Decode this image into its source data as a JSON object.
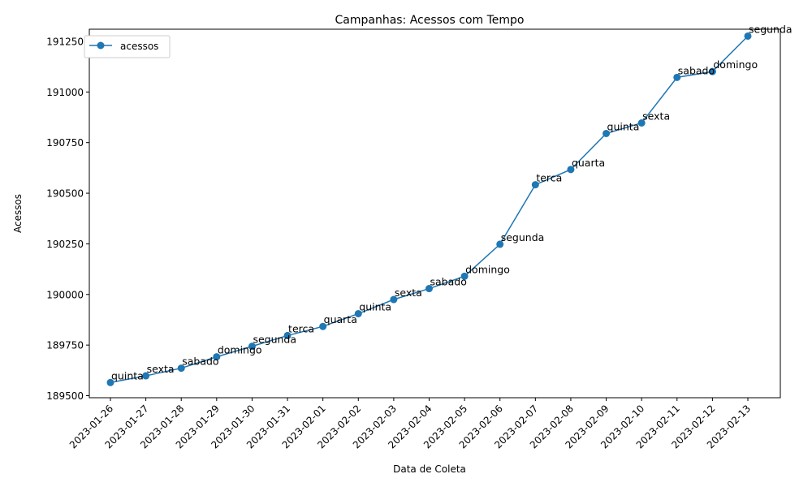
{
  "chart_data": {
    "type": "line",
    "title": "Campanhas: Acessos com Tempo",
    "xlabel": "Data de Coleta",
    "ylabel": "Acessos",
    "ylim": [
      189490,
      191310
    ],
    "yticks": [
      189500,
      189750,
      190000,
      190250,
      190500,
      190750,
      191000,
      191250
    ],
    "grid": false,
    "legend_position": "upper-left",
    "color": "#1f77b4",
    "x": [
      "2023-01-26",
      "2023-01-27",
      "2023-01-28",
      "2023-01-29",
      "2023-01-30",
      "2023-01-31",
      "2023-02-01",
      "2023-02-02",
      "2023-02-03",
      "2023-02-04",
      "2023-02-05",
      "2023-02-06",
      "2023-02-07",
      "2023-02-08",
      "2023-02-09",
      "2023-02-10",
      "2023-02-11",
      "2023-02-12",
      "2023-02-13"
    ],
    "series": [
      {
        "name": "acessos",
        "values": [
          189565,
          189598,
          189636,
          189692,
          189744,
          189797,
          189842,
          189905,
          189975,
          190029,
          190090,
          190248,
          190542,
          190617,
          190795,
          190847,
          191072,
          191101,
          191276
        ],
        "annotations": [
          "quinta",
          "sexta",
          "sabado",
          "domingo",
          "segunda",
          "terca",
          "quarta",
          "quinta",
          "sexta",
          "sabado",
          "domingo",
          "segunda",
          "terca",
          "quarta",
          "quinta",
          "sexta",
          "sabado",
          "domingo",
          "segunda"
        ]
      }
    ]
  }
}
